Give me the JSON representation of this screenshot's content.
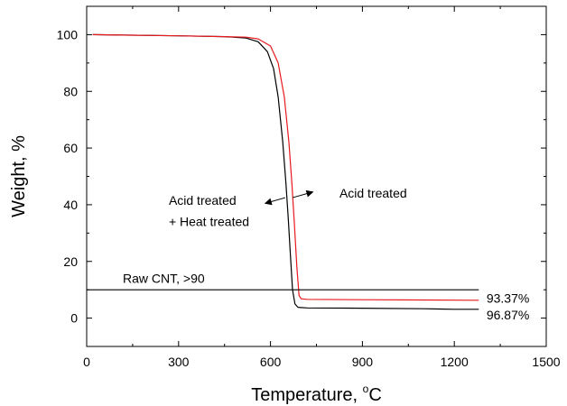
{
  "chart_data": {
    "type": "line",
    "xlabel": "Temperature, ",
    "xlabel_unit_sup": "o",
    "xlabel_unit": "C",
    "ylabel": "Weight, %",
    "xlim": [
      0,
      1500
    ],
    "ylim": [
      -10,
      110
    ],
    "xticks": [
      0,
      300,
      600,
      900,
      1200,
      1500
    ],
    "xtick_labels": [
      "0",
      "300",
      "600",
      "900",
      "1200",
      "1500"
    ],
    "yticks": [
      0,
      20,
      40,
      60,
      80,
      100
    ],
    "ytick_labels": [
      "0",
      "20",
      "40",
      "60",
      "80",
      "100"
    ],
    "grid": false,
    "series": [
      {
        "color": "#000000",
        "x": [
          20,
          300,
          450,
          520,
          560,
          590,
          610,
          625,
          640,
          650,
          658,
          665,
          672,
          680,
          690,
          720,
          900,
          1100,
          1150,
          1200,
          1280
        ],
        "y": [
          100,
          99.6,
          99.3,
          98.8,
          97.5,
          94,
          88,
          78,
          62,
          48,
          35,
          22,
          10,
          5,
          3.8,
          3.6,
          3.5,
          3.3,
          3.2,
          3.1,
          3.1
        ]
      },
      {
        "color": "#e8191f",
        "x": [
          20,
          300,
          450,
          520,
          560,
          600,
          625,
          645,
          660,
          670,
          678,
          686,
          693,
          700,
          720,
          900,
          1100,
          1280
        ],
        "y": [
          100,
          99.6,
          99.3,
          99.1,
          98.5,
          96,
          90,
          78,
          62,
          47,
          33,
          18,
          8,
          6.8,
          6.6,
          6.5,
          6.4,
          6.3
        ]
      },
      {
        "color": "#000000",
        "x": [
          0,
          1280
        ],
        "y": [
          10,
          10
        ]
      }
    ],
    "annotations": [
      {
        "name": "acid-heat-line1",
        "text": "Acid treated",
        "x": 268,
        "y": 40
      },
      {
        "name": "acid-heat-line2",
        "text": "+ Heat treated",
        "x": 268,
        "y": 32.5
      },
      {
        "name": "acid-treated",
        "text": "Acid treated",
        "x": 825,
        "y": 42.5
      },
      {
        "name": "raw-cnt",
        "text": "Raw CNT, >90",
        "x": 118,
        "y": 12.5
      },
      {
        "name": "value-93",
        "text": "93.37%",
        "x": 1305,
        "y": 5.5
      },
      {
        "name": "value-96",
        "text": "96.87%",
        "x": 1305,
        "y": -0.5
      }
    ],
    "arrows": [
      {
        "name": "arrow-left",
        "from": [
          648,
          42.5
        ],
        "to": [
          583,
          40.5
        ]
      },
      {
        "name": "arrow-right",
        "from": [
          672,
          42.5
        ],
        "to": [
          738,
          44.5
        ]
      }
    ]
  }
}
